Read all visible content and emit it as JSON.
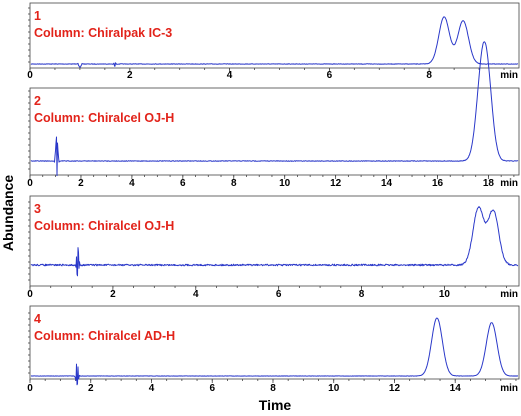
{
  "figure": {
    "ylabel": "Abundance",
    "xlabel": "Time",
    "line_color": "#2a38c9",
    "label_color": "#e2231a"
  },
  "chart_data": [
    {
      "type": "line",
      "panel_number": "1",
      "column_label": "Column: Chiralpak IC-3",
      "xlim": [
        0,
        9.8
      ],
      "xticks": [
        0,
        2,
        4,
        6,
        8
      ],
      "x_unit_label": "min",
      "peaks": [
        {
          "x": 8.3,
          "height": 1.0
        },
        {
          "x": 8.68,
          "height": 0.92
        }
      ],
      "artifacts": [
        {
          "x": 1.0,
          "amplitude": 0.12
        },
        {
          "x": 1.7,
          "amplitude": -0.05
        }
      ]
    },
    {
      "type": "line",
      "panel_number": "2",
      "column_label": "Column: Chiralcel OJ-H",
      "xlim": [
        0,
        19.2
      ],
      "xticks": [
        0,
        2,
        4,
        6,
        8,
        10,
        12,
        14,
        16,
        18
      ],
      "x_unit_label": "min",
      "peaks": [
        {
          "x": 17.72,
          "height": 0.95
        },
        {
          "x": 17.95,
          "height": 1.0
        }
      ],
      "artifacts": [
        {
          "x": 1.05,
          "amplitude": 0.35
        }
      ]
    },
    {
      "type": "line",
      "panel_number": "3",
      "column_label": "Column: Chiralcel OJ-H",
      "xlim": [
        0,
        11.8
      ],
      "xticks": [
        0,
        2,
        4,
        6,
        8,
        10
      ],
      "x_unit_label": "min",
      "peaks": [
        {
          "x": 10.82,
          "height": 0.95
        },
        {
          "x": 11.18,
          "height": 0.9
        }
      ],
      "artifacts": [
        {
          "x": 1.15,
          "amplitude": 0.3
        }
      ]
    },
    {
      "type": "line",
      "panel_number": "4",
      "column_label": "Column: Chiralcel AD-H",
      "xlim": [
        0,
        16.1
      ],
      "xticks": [
        0,
        2,
        4,
        6,
        8,
        10,
        12,
        14
      ],
      "x_unit_label": "min",
      "peaks": [
        {
          "x": 13.4,
          "height": 1.0
        },
        {
          "x": 15.2,
          "height": 0.92
        }
      ],
      "artifacts": [
        {
          "x": 1.55,
          "amplitude": 0.25
        }
      ]
    }
  ]
}
